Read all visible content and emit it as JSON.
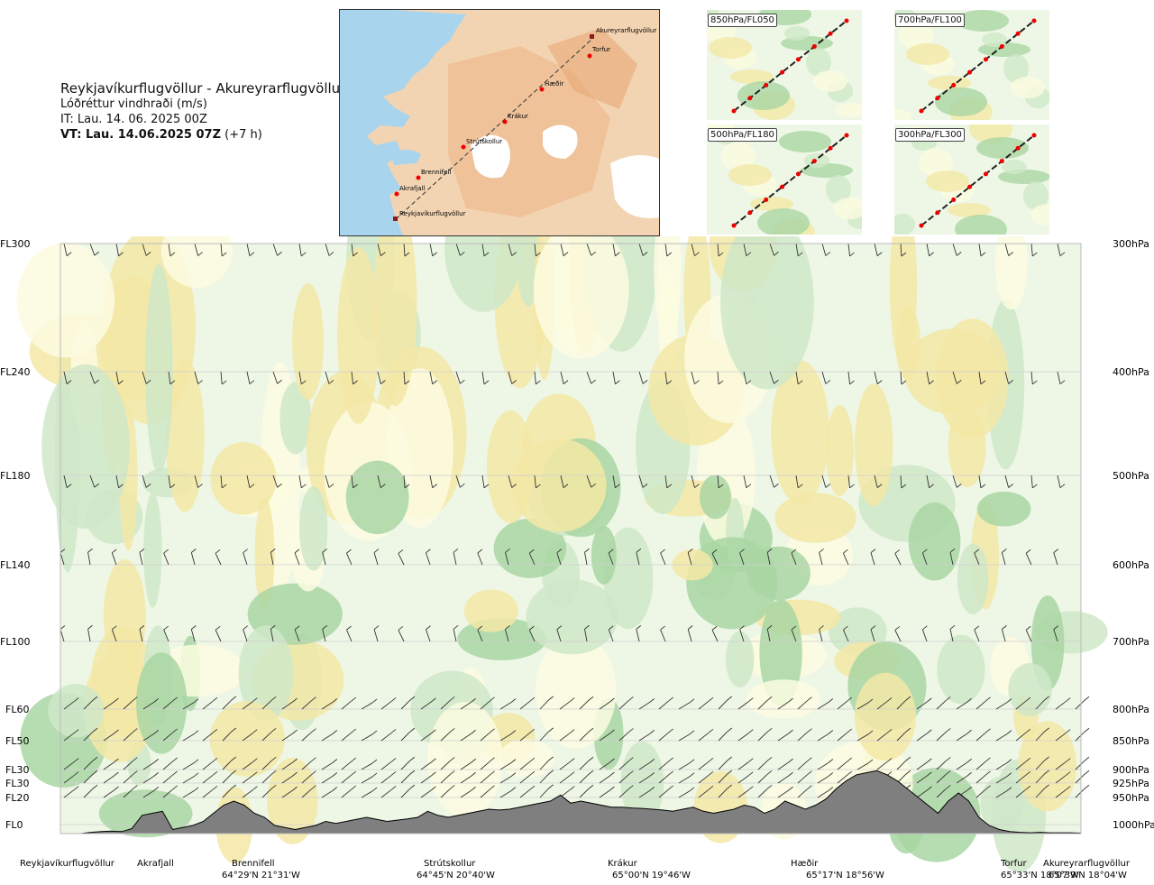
{
  "header": {
    "route": "Reykjavíkurflugvöllur - Akureyrarflugvöllur",
    "quantity": "Lóðréttur vindhraði (m/s)",
    "init_time": "IT: Lau. 14. 06. 2025 00Z",
    "valid_time_bold": "VT: Lau. 14.06.2025 07Z",
    "valid_time_offset": "(+7 h)"
  },
  "map": {
    "stations": [
      "Reykjavíkurflugvöllur",
      "Akrafjall",
      "Brennifell",
      "Strútskollur",
      "Krákur",
      "Hæðir",
      "Torfur",
      "Akureyrarflugvöllur"
    ]
  },
  "level_panels": [
    {
      "label": "850hPa/FL050"
    },
    {
      "label": "700hPa/FL100"
    },
    {
      "label": "500hPa/FL180"
    },
    {
      "label": "300hPa/FL300"
    }
  ],
  "colors": {
    "upward": "#cfe8c8",
    "upward_strong": "#a9d6a3",
    "weak": "#eef7e6",
    "neutral": "#fbfbe0",
    "downward": "#f3e8a6",
    "terrain": "#7f7f7f"
  },
  "chart_data": {
    "type": "heatmap",
    "variable": "Lóðréttur vindhraði (m/s)",
    "y_levels_fl": [
      "FL300",
      "FL240",
      "FL180",
      "FL140",
      "FL100",
      "FL60",
      "FL50",
      "FL30",
      "FL30",
      "FL20",
      "FL0"
    ],
    "y_levels_hpa": [
      "300hPa",
      "400hPa",
      "500hPa",
      "600hPa",
      "700hPa",
      "800hPa",
      "850hPa",
      "900hPa",
      "925hPa",
      "950hPa",
      "1000hPa"
    ],
    "stations": [
      {
        "name": "Reykjavíkurflugvöllur",
        "coord": ""
      },
      {
        "name": "Akrafjall",
        "coord": ""
      },
      {
        "name": "Brennifell",
        "coord": "64°29'N 21°31'W"
      },
      {
        "name": "Strútskollur",
        "coord": "64°45'N 20°40'W"
      },
      {
        "name": "Krákur",
        "coord": "65°00'N 19°46'W"
      },
      {
        "name": "Hæðir",
        "coord": "65°17'N 18°56'W"
      },
      {
        "name": "Torfur",
        "coord": "65°33'N 18°07'W"
      },
      {
        "name": "Akureyrarflugvöllur",
        "coord": "65°39'N 18°04'W"
      }
    ],
    "terrain_profile": [
      0,
      0,
      0,
      0.3,
      0.5,
      0.6,
      0.5,
      1.2,
      4.5,
      5.0,
      5.5,
      1.0,
      1.5,
      2.0,
      3.0,
      5.0,
      7.0,
      8.0,
      7.0,
      5.0,
      4.0,
      2.0,
      1.5,
      1.0,
      1.5,
      2.0,
      3.0,
      2.5,
      3.0,
      3.5,
      4.0,
      3.5,
      3.0,
      3.3,
      3.6,
      4.0,
      5.5,
      4.5,
      4.0,
      4.5,
      5.0,
      5.5,
      6.0,
      5.8,
      6.0,
      6.5,
      7.0,
      7.5,
      8.0,
      9.5,
      7.5,
      8.0,
      7.5,
      7.0,
      6.5,
      6.5,
      6.3,
      6.2,
      6.0,
      5.8,
      5.5,
      6.0,
      6.5,
      5.5,
      5.0,
      5.5,
      6.0,
      7.0,
      6.5,
      5.0,
      6.0,
      8.0,
      7.0,
      6.0,
      7.0,
      8.5,
      11.0,
      13.0,
      14.5,
      15.0,
      15.5,
      14.5,
      13.0,
      11.0,
      9.0,
      7.0,
      5.0,
      8.0,
      10.0,
      8.0,
      4.0,
      2.0,
      1.0,
      0.5,
      0.3,
      0.2,
      0.3,
      0.2,
      0.2,
      0.2,
      0.1
    ]
  }
}
